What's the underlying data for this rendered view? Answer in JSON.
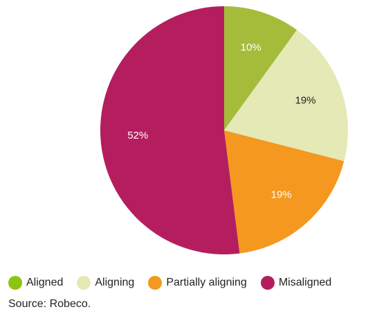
{
  "chart_data": {
    "type": "pie",
    "categories": [
      "Aligned",
      "Aligning",
      "Partially aligning",
      "Misaligned"
    ],
    "values": [
      10,
      19,
      19,
      52
    ],
    "value_labels": [
      "10%",
      "19%",
      "19%",
      "52%"
    ],
    "colors": [
      "#a4bc3a",
      "#e4e9b6",
      "#f4981f",
      "#b41e5e"
    ],
    "label_colors": [
      "#ffffff",
      "#222222",
      "#ffffff",
      "#ffffff"
    ],
    "start_angle_deg": 0,
    "direction": "clockwise",
    "legend_position": "bottom-left",
    "legend_colors": [
      "#8cc414",
      "#e4e9b6",
      "#f4981f",
      "#b41e5e"
    ]
  },
  "source": "Source: Robeco."
}
